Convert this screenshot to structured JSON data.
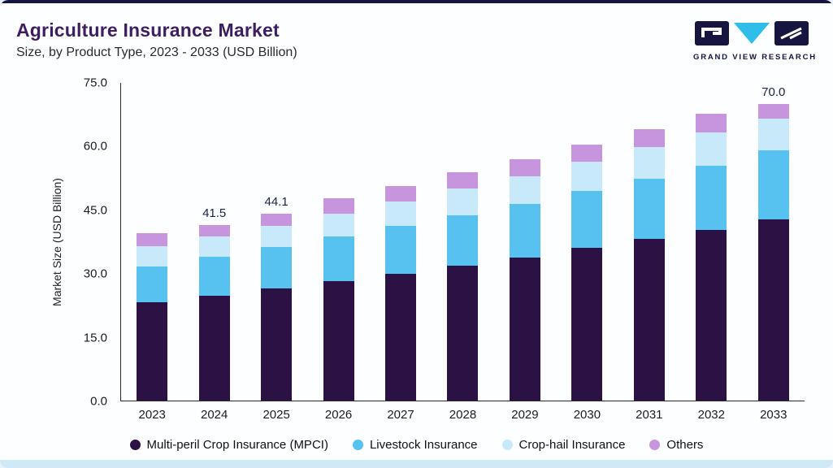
{
  "header": {
    "title": "Agriculture Insurance Market",
    "subtitle": "Size, by Product Type, 2023 - 2033 (USD Billion)",
    "brand": "GRAND VIEW RESEARCH"
  },
  "colors": {
    "top_strip": "#15153f",
    "bottom_strip": "#cfe9f6",
    "title": "#3e1e63",
    "logo_navy": "#15153f",
    "logo_cyan": "#2fbde9"
  },
  "chart_data": {
    "type": "bar",
    "stacked": true,
    "title": "Agriculture Insurance Market Size, by Product Type, 2023 - 2033 (USD Billion)",
    "xlabel": "",
    "ylabel": "Market Size (USD Billion)",
    "ylim": [
      0,
      75
    ],
    "yticks": [
      "0.0",
      "15.0",
      "30.0",
      "45.0",
      "60.0",
      "75.0"
    ],
    "grid": false,
    "legend_position": "bottom",
    "categories": [
      "2023",
      "2024",
      "2025",
      "2026",
      "2027",
      "2028",
      "2029",
      "2030",
      "2031",
      "2032",
      "2033"
    ],
    "series": [
      {
        "name": "Multi-peril Crop Insurance (MPCI)",
        "color": "#2b1144",
        "values": [
          23.3,
          24.8,
          26.5,
          28.2,
          30.0,
          31.8,
          33.8,
          36.0,
          38.2,
          40.3,
          42.8
        ]
      },
      {
        "name": "Livestock Insurance",
        "color": "#57c2ef",
        "values": [
          8.4,
          9.2,
          9.8,
          10.5,
          11.2,
          12.0,
          12.7,
          13.4,
          14.2,
          15.2,
          16.2
        ]
      },
      {
        "name": "Crop-hail Insurance",
        "color": "#c8e9f9",
        "values": [
          4.8,
          4.8,
          5.0,
          5.4,
          5.8,
          6.2,
          6.5,
          7.0,
          7.4,
          7.8,
          7.5
        ]
      },
      {
        "name": "Others",
        "color": "#c795de",
        "values": [
          3.1,
          2.7,
          2.8,
          3.7,
          3.6,
          4.0,
          4.0,
          4.1,
          4.2,
          4.4,
          3.5
        ]
      }
    ],
    "total_labels": {
      "2024": "41.5",
      "2025": "44.1",
      "2033": "70.0"
    }
  }
}
